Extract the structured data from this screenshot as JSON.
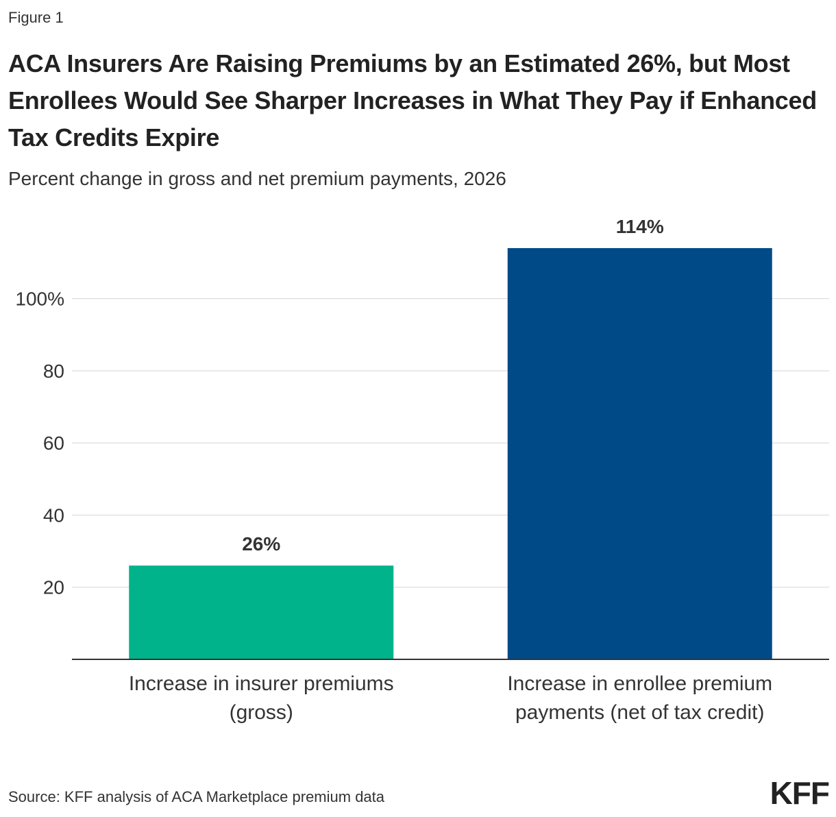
{
  "figure_label": "Figure 1",
  "title": "ACA Insurers Are Raising Premiums by an Estimated 26%, but Most Enrollees Would See Sharper Increases in What They Pay if Enhanced Tax Credits Expire",
  "subtitle": "Percent change in gross and net premium payments, 2026",
  "source": "Source: KFF analysis of ACA Marketplace premium data",
  "logo": "KFF",
  "chart_data": {
    "type": "bar",
    "categories": [
      [
        "Increase in insurer premiums",
        "(gross)"
      ],
      [
        "Increase in enrollee premium",
        "payments (net of tax credit)"
      ]
    ],
    "values": [
      26,
      114
    ],
    "data_labels": [
      "26%",
      "114%"
    ],
    "colors": [
      "#00b38a",
      "#004a87"
    ],
    "yticks": [
      20,
      40,
      60,
      80,
      100
    ],
    "ytick_labels": [
      "20",
      "40",
      "60",
      "80",
      "100%"
    ],
    "ylim": [
      0,
      114
    ],
    "grid": true,
    "legend": "none"
  }
}
